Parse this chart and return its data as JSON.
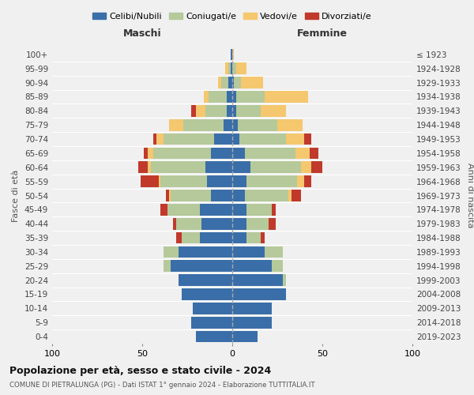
{
  "age_groups": [
    "0-4",
    "5-9",
    "10-14",
    "15-19",
    "20-24",
    "25-29",
    "30-34",
    "35-39",
    "40-44",
    "45-49",
    "50-54",
    "55-59",
    "60-64",
    "65-69",
    "70-74",
    "75-79",
    "80-84",
    "85-89",
    "90-94",
    "95-99",
    "100+"
  ],
  "birth_years": [
    "2019-2023",
    "2014-2018",
    "2009-2013",
    "2004-2008",
    "1999-2003",
    "1994-1998",
    "1989-1993",
    "1984-1988",
    "1979-1983",
    "1974-1978",
    "1969-1973",
    "1964-1968",
    "1959-1963",
    "1954-1958",
    "1949-1953",
    "1944-1948",
    "1939-1943",
    "1934-1938",
    "1929-1933",
    "1924-1928",
    "≤ 1923"
  ],
  "colors": {
    "celibi": "#3a6ea8",
    "coniugati": "#b5c99a",
    "vedovi": "#f5c76e",
    "divorziati": "#c0392b"
  },
  "males": {
    "celibi": [
      20,
      23,
      22,
      28,
      30,
      34,
      30,
      18,
      17,
      18,
      12,
      14,
      15,
      12,
      10,
      5,
      3,
      3,
      2,
      1,
      1
    ],
    "coniugati": [
      0,
      0,
      0,
      0,
      0,
      4,
      8,
      10,
      14,
      18,
      22,
      26,
      30,
      32,
      28,
      22,
      12,
      10,
      4,
      1,
      0
    ],
    "vedovi": [
      0,
      0,
      0,
      0,
      0,
      0,
      0,
      0,
      0,
      0,
      1,
      1,
      2,
      3,
      4,
      8,
      5,
      3,
      2,
      2,
      0
    ],
    "divorziati": [
      0,
      0,
      0,
      0,
      0,
      0,
      0,
      3,
      2,
      4,
      2,
      10,
      5,
      2,
      2,
      0,
      3,
      0,
      0,
      0,
      0
    ]
  },
  "females": {
    "celibi": [
      14,
      22,
      22,
      30,
      28,
      22,
      18,
      8,
      8,
      8,
      7,
      8,
      10,
      7,
      4,
      3,
      2,
      2,
      1,
      0,
      0
    ],
    "coniugati": [
      0,
      0,
      0,
      0,
      2,
      6,
      10,
      8,
      12,
      14,
      24,
      28,
      28,
      28,
      26,
      22,
      14,
      16,
      4,
      2,
      0
    ],
    "vedovi": [
      0,
      0,
      0,
      0,
      0,
      0,
      0,
      0,
      0,
      0,
      2,
      4,
      6,
      8,
      10,
      14,
      14,
      24,
      12,
      6,
      1
    ],
    "divorziati": [
      0,
      0,
      0,
      0,
      0,
      0,
      0,
      2,
      4,
      2,
      5,
      4,
      6,
      5,
      4,
      0,
      0,
      0,
      0,
      0,
      0
    ]
  },
  "title": "Popolazione per età, sesso e stato civile - 2024",
  "subtitle": "COMUNE DI PIETRALUNGA (PG) - Dati ISTAT 1° gennaio 2024 - Elaborazione TUTTITALIA.IT",
  "xlabel_left": "Maschi",
  "xlabel_right": "Femmine",
  "ylabel_left": "Fasce di età",
  "ylabel_right": "Anni di nascita",
  "xlim": 100,
  "legend_labels": [
    "Celibi/Nubili",
    "Coniugati/e",
    "Vedovi/e",
    "Divorziati/e"
  ],
  "bg_color": "#f0f0f0"
}
